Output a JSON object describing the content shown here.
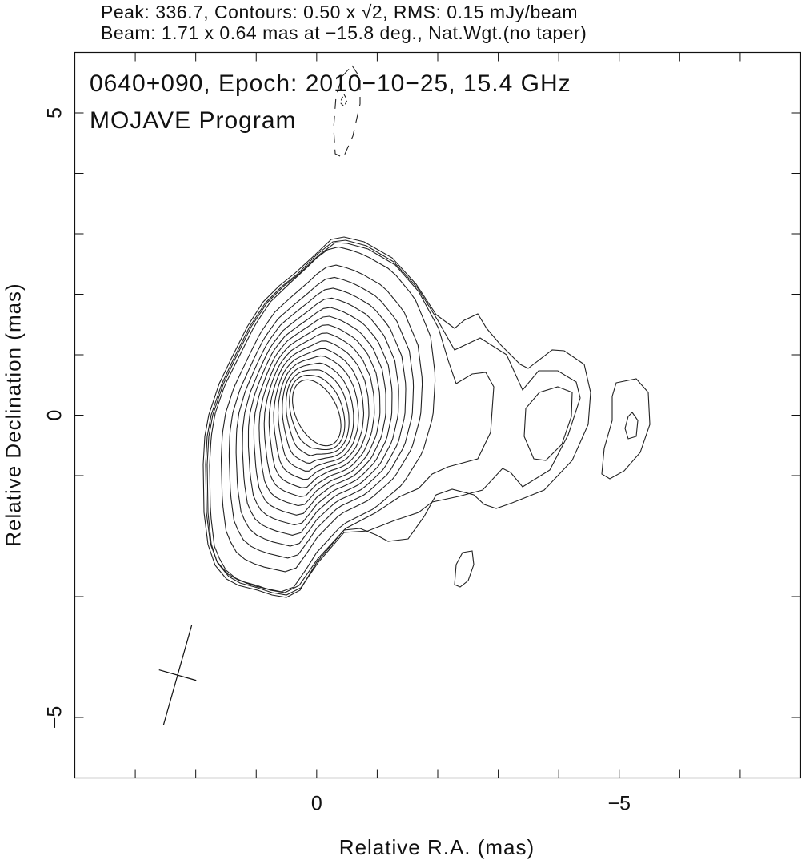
{
  "header": {
    "line1": "Peak: 336.7, Contours: 0.50 x √2, RMS: 0.15 mJy/beam",
    "line2": "Beam: 1.71 x 0.64 mas at −15.8 deg., Nat.Wgt.(no taper)"
  },
  "plot_labels": {
    "source": "0640+090, Epoch: 2010−10−25, 15.4 GHz",
    "program": "MOJAVE Program"
  },
  "chart_data": {
    "type": "contour",
    "xlabel": "Relative R.A. (mas)",
    "ylabel": "Relative Declination (mas)",
    "xlim": [
      4,
      -8
    ],
    "ylim": [
      -6,
      6
    ],
    "x_ticks_labeled": [
      {
        "value": 0,
        "label": "0"
      },
      {
        "value": -5,
        "label": "−5"
      }
    ],
    "y_ticks_labeled": [
      {
        "value": 5,
        "label": "5"
      },
      {
        "value": 0,
        "label": "0"
      },
      {
        "value": -5,
        "label": "−5"
      }
    ],
    "minor_tick_step": 1,
    "grid": false,
    "peak_mJy_per_beam": 336.7,
    "base_contour_mJy_per_beam": 0.5,
    "contour_factor": "√2",
    "contour_count": 19,
    "rms_mJy_per_beam": 0.15,
    "beam": {
      "major_mas": 1.71,
      "minor_mas": 0.64,
      "pa_deg": -15.8,
      "center_mas": [
        2.3,
        -4.3
      ]
    },
    "core_position_mas": [
      0,
      0
    ],
    "line_color": "#111111"
  }
}
